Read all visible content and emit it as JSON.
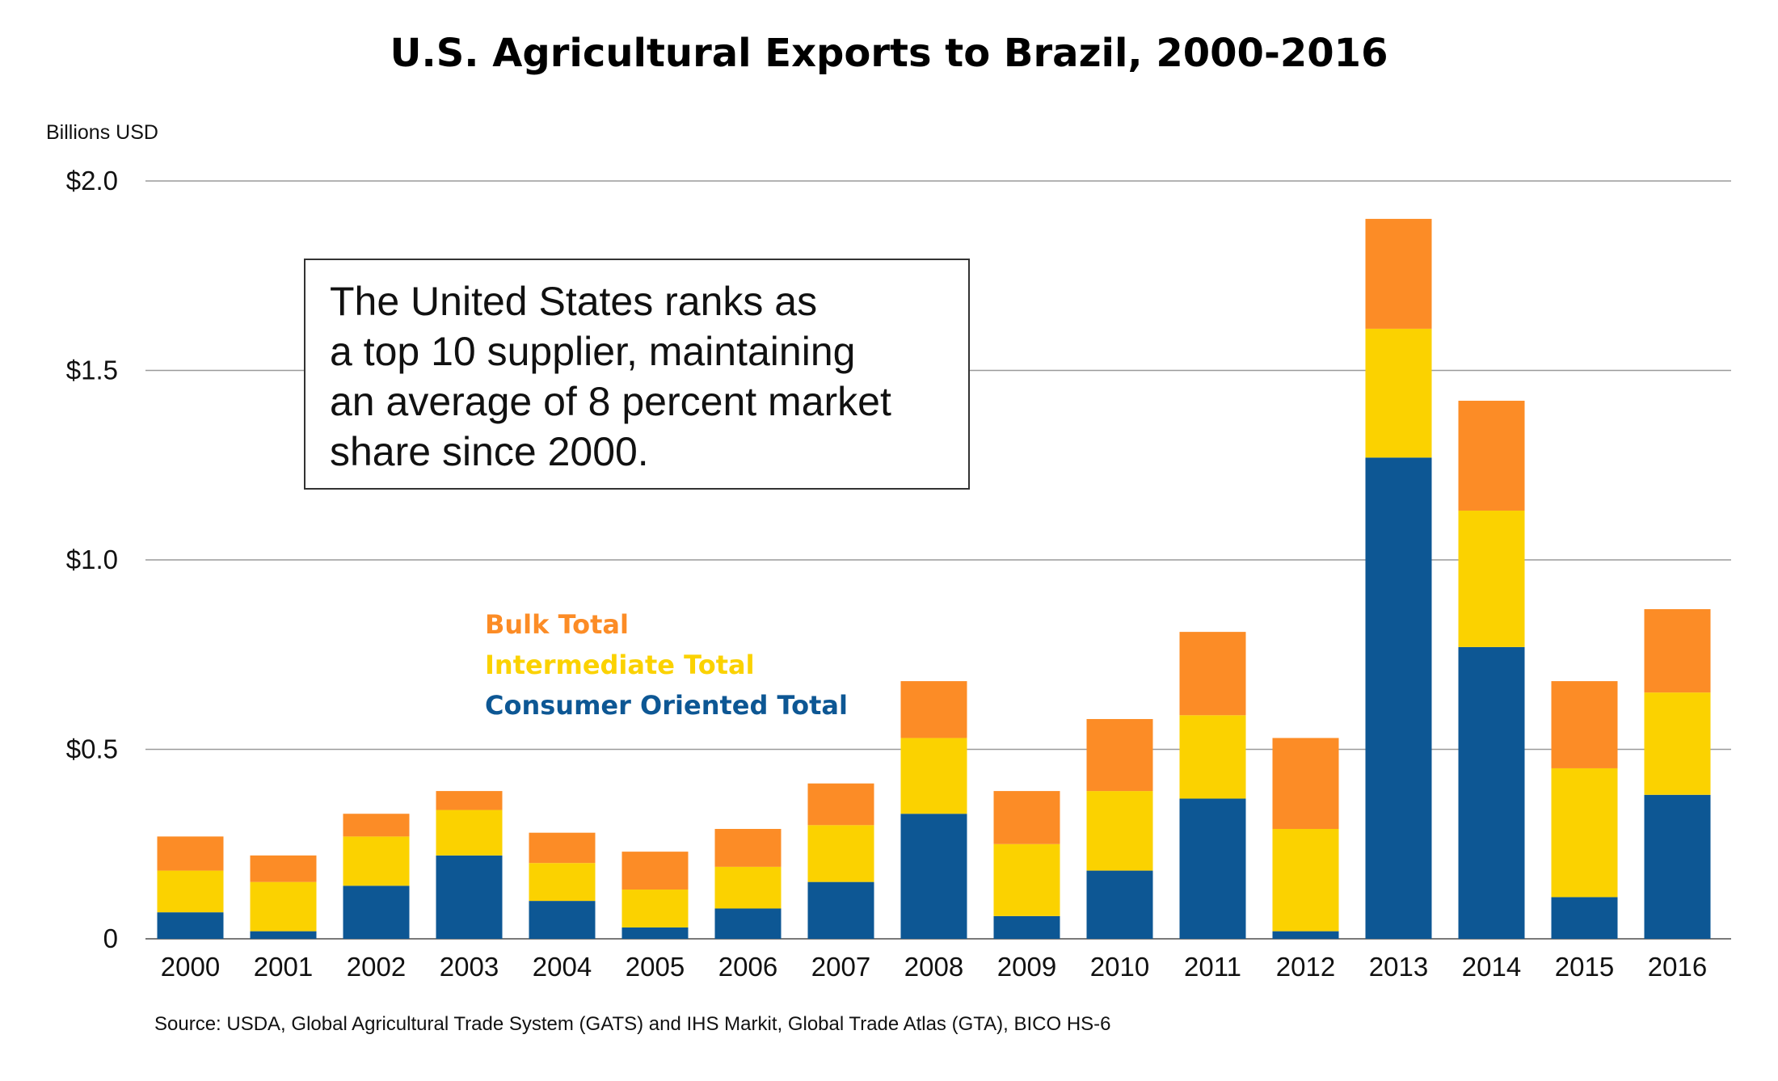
{
  "chart_data": {
    "type": "bar",
    "stacked": true,
    "title": "U.S. Agricultural Exports to Brazil, 2000-2016",
    "ylabel": "Billions USD",
    "xlabel": "",
    "ylim": [
      0,
      2.0
    ],
    "yticks": [
      0,
      0.5,
      1.0,
      1.5,
      2.0
    ],
    "ytick_labels": [
      "0",
      "$0.5",
      "$1.0",
      "$1.5",
      "$2.0"
    ],
    "grid": true,
    "legend_position": "center-left",
    "categories": [
      "2000",
      "2001",
      "2002",
      "2003",
      "2004",
      "2005",
      "2006",
      "2007",
      "2008",
      "2009",
      "2010",
      "2011",
      "2012",
      "2013",
      "2014",
      "2015",
      "2016"
    ],
    "series": [
      {
        "name": "Consumer Oriented Total",
        "color": "#0d5794",
        "values": [
          0.07,
          0.02,
          0.14,
          0.22,
          0.1,
          0.03,
          0.08,
          0.15,
          0.33,
          0.06,
          0.18,
          0.37,
          0.02,
          1.27,
          0.77,
          0.11,
          0.38
        ]
      },
      {
        "name": "Intermediate Total",
        "color": "#fbd200",
        "values": [
          0.11,
          0.13,
          0.13,
          0.12,
          0.1,
          0.1,
          0.11,
          0.15,
          0.2,
          0.19,
          0.21,
          0.22,
          0.27,
          0.34,
          0.36,
          0.34,
          0.27
        ]
      },
      {
        "name": "Bulk Total",
        "color": "#fc8c26",
        "values": [
          0.09,
          0.07,
          0.06,
          0.05,
          0.08,
          0.1,
          0.1,
          0.11,
          0.15,
          0.14,
          0.19,
          0.22,
          0.24,
          0.29,
          0.29,
          0.23,
          0.22
        ]
      }
    ],
    "annotation": "The United States ranks as a top 10 supplier, maintaining an average of 8 percent market share since 2000.",
    "source": "Source:  USDA, Global Agricultural Trade System (GATS) and IHS Markit, Global Trade Atlas (GTA), BICO HS-6"
  },
  "callout_lines": [
    "The United States ranks as",
    "a top 10 supplier, maintaining",
    "an average of 8 percent market",
    "share since 2000."
  ],
  "legend_order": [
    "Bulk Total",
    "Intermediate Total",
    "Consumer Oriented Total"
  ],
  "colors": {
    "bulk": "#fc8c26",
    "intermediate": "#fbd200",
    "consumer": "#0d5794",
    "grid": "#9a9a9a"
  }
}
